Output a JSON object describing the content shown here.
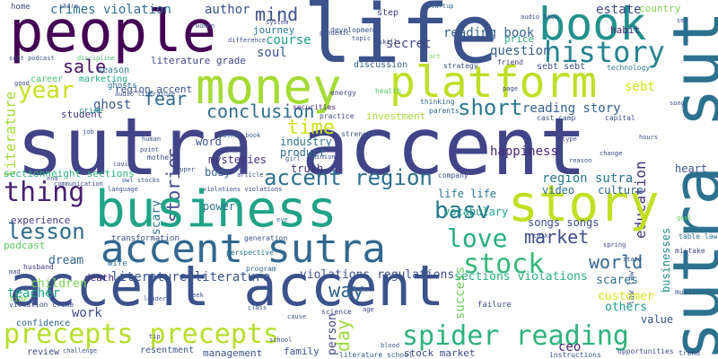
{
  "words": [
    {
      "text": "sutra accent",
      "color": "#414487",
      "rot": 0
    },
    {
      "text": "life",
      "color": "#3b528b",
      "rot": 0
    },
    {
      "text": "people",
      "color": "#440154",
      "rot": 0
    },
    {
      "text": "business",
      "color": "#20a386",
      "rot": 0
    },
    {
      "text": "accent accent",
      "color": "#3b528b",
      "rot": 0
    },
    {
      "text": "money",
      "color": "#a5db36",
      "rot": 0
    },
    {
      "text": "platform",
      "color": "#bddf26",
      "rot": 0
    },
    {
      "text": "book",
      "color": "#21918c",
      "rot": 0
    },
    {
      "text": "story",
      "color": "#c2df23",
      "rot": 0
    },
    {
      "text": "accent sutra",
      "color": "#31688e",
      "rot": 0
    },
    {
      "text": "sutra sutra",
      "color": "#2c728e",
      "rot": 90
    },
    {
      "text": "precepts precepts",
      "color": "#b5de2b",
      "rot": 0
    },
    {
      "text": "spider reading",
      "color": "#2eb37c",
      "rot": 0
    },
    {
      "text": "history",
      "color": "#25838e",
      "rot": 0
    },
    {
      "text": "stock",
      "color": "#35b779",
      "rot": 0
    },
    {
      "text": "accent region",
      "color": "#2d708e",
      "rot": 0
    },
    {
      "text": "thing",
      "color": "#482173",
      "rot": 0
    },
    {
      "text": "year",
      "color": "#c8e020",
      "rot": 0
    },
    {
      "text": "love",
      "color": "#26ad81",
      "rot": 0
    },
    {
      "text": "basv",
      "color": "#2a788e",
      "rot": 0
    },
    {
      "text": "lesson",
      "color": "#2f6c8e",
      "rot": 0
    },
    {
      "text": "conclusion",
      "color": "#2e6e8e",
      "rot": 0
    },
    {
      "text": "short",
      "color": "#2a778e",
      "rot": 0
    },
    {
      "text": "stories",
      "color": "#3e4a89",
      "rot": 90
    },
    {
      "text": "education",
      "color": "#46337e",
      "rot": 90
    },
    {
      "text": "market",
      "color": "#3e4c8a",
      "rot": 0
    },
    {
      "text": "world",
      "color": "#31688e",
      "rot": 0
    },
    {
      "text": "way",
      "color": "#31688e",
      "rot": 0
    },
    {
      "text": "time",
      "color": "#d0e11c",
      "rot": 0
    },
    {
      "text": "sale",
      "color": "#471365",
      "rot": 0
    },
    {
      "text": "fear",
      "color": "#306a8e",
      "rot": 0
    },
    {
      "text": "mind",
      "color": "#3d4e8a",
      "rot": 0
    },
    {
      "text": "day",
      "color": "#9bd93c",
      "rot": 90
    },
    {
      "text": "crimes violation",
      "color": "#2e6f8e",
      "rot": 0
    },
    {
      "text": "author",
      "color": "#3b528b",
      "rot": 0
    },
    {
      "text": "reading book",
      "color": "#355f8d",
      "rot": 0
    },
    {
      "text": "estate",
      "color": "#3f4889",
      "rot": 0
    },
    {
      "text": "reading story",
      "color": "#34618d",
      "rot": 0
    },
    {
      "text": "happiness",
      "color": "#482878",
      "rot": 0
    },
    {
      "text": "region sutra",
      "color": "#2a788e",
      "rot": 0
    },
    {
      "text": "secret",
      "color": "#3f4788",
      "rot": 0
    },
    {
      "text": "course",
      "color": "#1fa187",
      "rot": 0
    },
    {
      "text": "soul",
      "color": "#38588c",
      "rot": 0
    },
    {
      "text": "question",
      "color": "#355f8d",
      "rot": 0
    },
    {
      "text": "sebt",
      "color": "#d2e21b",
      "rot": 0
    },
    {
      "text": "literature",
      "color": "#a2da37",
      "rot": 90
    },
    {
      "text": "ghost",
      "color": "#38598c",
      "rot": 0
    },
    {
      "text": "success",
      "color": "#6ece58",
      "rot": 90
    },
    {
      "text": "person",
      "color": "#3e4989",
      "rot": 90
    },
    {
      "text": "ceo",
      "color": "#482475",
      "rot": 0
    },
    {
      "text": "scary",
      "color": "#2c738e",
      "rot": 90
    },
    {
      "text": "businesses",
      "color": "#218f8d",
      "rot": 90
    },
    {
      "text": "literature literature",
      "color": "#3a548c",
      "rot": 0
    },
    {
      "text": "teacher",
      "color": "#22a785",
      "rot": 0
    },
    {
      "text": "work",
      "color": "#3e4a89",
      "rot": 0
    },
    {
      "text": "children",
      "color": "#7cd250",
      "rot": 0
    },
    {
      "text": "dream",
      "color": "#33638d",
      "rot": 0
    },
    {
      "text": "violations regulations",
      "color": "#3c4f8a",
      "rot": 0
    },
    {
      "text": "sections violations",
      "color": "#29af7f",
      "rot": 0
    },
    {
      "text": "customer",
      "color": "#d8e219",
      "rot": 0
    },
    {
      "text": "scares",
      "color": "#2d708e",
      "rot": 0
    },
    {
      "text": "others",
      "color": "#1e9b8a",
      "rot": 0
    },
    {
      "text": "value",
      "color": "#3b518b",
      "rot": 0
    },
    {
      "text": "life life",
      "color": "#2a788e",
      "rot": 0
    },
    {
      "text": "video",
      "color": "#2c718e",
      "rot": 0
    },
    {
      "text": "culture",
      "color": "#33638d",
      "rot": 0
    },
    {
      "text": "heart",
      "color": "#3a548c",
      "rot": 0
    },
    {
      "text": "vocabulary",
      "color": "#1f9e89",
      "rot": 0
    },
    {
      "text": "songs songs",
      "color": "#3f4889",
      "rot": 0
    },
    {
      "text": "industry",
      "color": "#2b758e",
      "rot": 0
    },
    {
      "text": "truth",
      "color": "#46307e",
      "rot": 0
    },
    {
      "text": "body",
      "color": "#34608d",
      "rot": 0
    },
    {
      "text": "power",
      "color": "#2c728e",
      "rot": 0
    },
    {
      "text": "product",
      "color": "#30698e",
      "rot": 0
    },
    {
      "text": "mysteries",
      "color": "#472f7d",
      "rot": 0
    },
    {
      "text": "word",
      "color": "#3b518b",
      "rot": 0
    },
    {
      "text": "experience",
      "color": "#443983",
      "rot": 0
    },
    {
      "text": "student",
      "color": "#46337e",
      "rot": 0
    },
    {
      "text": "region accent",
      "color": "#3b528b",
      "rot": 0
    },
    {
      "text": "sectionneight sections",
      "color": "#2cb17e",
      "rot": 0
    },
    {
      "text": "podcast",
      "color": "#5ec962",
      "rot": 0
    },
    {
      "text": "death",
      "color": "#472c7a",
      "rot": 0
    },
    {
      "text": "family",
      "color": "#3e4a89",
      "rot": 0
    },
    {
      "text": "management",
      "color": "#3b528b",
      "rot": 0
    },
    {
      "text": "resentment",
      "color": "#3a548c",
      "rot": 0
    },
    {
      "text": "stock market",
      "color": "#3f4788",
      "rot": 0
    },
    {
      "text": "confidence",
      "color": "#306a8e",
      "rot": 0
    },
    {
      "text": "review",
      "color": "#404688",
      "rot": 0
    },
    {
      "text": "investment",
      "color": "#a8db34",
      "rot": 0
    },
    {
      "text": "discussion",
      "color": "#34618d",
      "rot": 0
    },
    {
      "text": "journey",
      "color": "#2b748e",
      "rot": 0
    },
    {
      "text": "literature grade",
      "color": "#3f4889",
      "rot": 0
    },
    {
      "text": "season",
      "color": "#2a788e",
      "rot": 0
    },
    {
      "text": "career",
      "color": "#4ac16d",
      "rot": 0
    },
    {
      "text": "marketing",
      "color": "#25ab82",
      "rot": 0
    },
    {
      "text": "price",
      "color": "#25ac82",
      "rot": 0
    },
    {
      "text": "habit",
      "color": "#482475",
      "rot": 0
    },
    {
      "text": "country",
      "color": "#7fd34e",
      "rot": 0
    },
    {
      "text": "sebt sebt",
      "color": "#3b528b",
      "rot": 0
    },
    {
      "text": "step",
      "color": "#424086",
      "rot": 0
    },
    {
      "text": "home",
      "color": "#3e4989",
      "rot": 0
    },
    {
      "text": "crime",
      "color": "#21908d",
      "rot": 0
    },
    {
      "text": "wife",
      "color": "#2e6e8e",
      "rot": 0
    },
    {
      "text": "ghosts",
      "color": "#2c728e",
      "rot": 0
    },
    {
      "text": "failure",
      "color": "#3f4889",
      "rot": 0
    },
    {
      "text": "time",
      "color": "#7ad151",
      "rot": 0
    },
    {
      "text": "violation crime",
      "color": "#3f4788",
      "rot": 0
    },
    {
      "text": "transformation",
      "color": "#3e4c8a",
      "rot": 0
    },
    {
      "text": "perspective",
      "color": "#2a788e",
      "rot": 0
    },
    {
      "text": "strength",
      "color": "#3a548c",
      "rot": 0
    },
    {
      "text": "company",
      "color": "#3c4f8a",
      "rot": 0
    },
    {
      "text": "opportunities",
      "color": "#3f4788",
      "rot": 0
    },
    {
      "text": "instructions",
      "color": "#3b528b",
      "rot": 0
    },
    {
      "text": "literature school",
      "color": "#38598c",
      "rot": 0
    },
    {
      "text": "trend",
      "color": "#3e4a89",
      "rot": 0
    },
    {
      "text": "science",
      "color": "#3f4788",
      "rot": 0
    },
    {
      "text": "development",
      "color": "#3a548c",
      "rot": 0
    },
    {
      "text": "generation",
      "color": "#3b528b",
      "rot": 0
    },
    {
      "text": "program",
      "color": "#31688e",
      "rot": 0
    },
    {
      "text": "strategy",
      "color": "#3b528b",
      "rot": 0
    },
    {
      "text": "friend",
      "color": "#424086",
      "rot": 0
    },
    {
      "text": "securities",
      "color": "#472d7b",
      "rot": 0
    },
    {
      "text": "practice",
      "color": "#3e4c8a",
      "rot": 0
    },
    {
      "text": "energy",
      "color": "#3f4889",
      "rot": 0
    },
    {
      "text": "thinking",
      "color": "#31688e",
      "rot": 0
    },
    {
      "text": "health",
      "color": "#5ec962",
      "rot": 0
    },
    {
      "text": "parents",
      "color": "#33638d",
      "rot": 0
    },
    {
      "text": "cast camp",
      "color": "#3b528b",
      "rot": 0
    },
    {
      "text": "capital",
      "color": "#3e4a89",
      "rot": 0
    },
    {
      "text": "technology",
      "color": "#2a788e",
      "rot": 0
    },
    {
      "text": "suffering",
      "color": "#38598c",
      "rot": 90
    },
    {
      "text": "table laws",
      "color": "#2c728e",
      "rot": 0
    },
    {
      "text": "mistake",
      "color": "#3e4989",
      "rot": 0
    },
    {
      "text": "music",
      "color": "#3b528b",
      "rot": 0
    },
    {
      "text": "law law",
      "color": "#3a548c",
      "rot": 0
    },
    {
      "text": "mother",
      "color": "#3f4788",
      "rot": 0
    },
    {
      "text": "husband",
      "color": "#46337e",
      "rot": 0
    },
    {
      "text": "audio book",
      "color": "#3e4c8a",
      "rot": 0
    },
    {
      "text": "audio literature",
      "color": "#3b528b",
      "rot": 0
    },
    {
      "text": "author book",
      "color": "#38598c",
      "rot": 0
    },
    {
      "text": "sebt podcast",
      "color": "#3b528b",
      "rot": 0
    },
    {
      "text": "discipline",
      "color": "#4ac16d",
      "rot": 0
    },
    {
      "text": "system",
      "color": "#3f4788",
      "rot": 0
    },
    {
      "text": "difference",
      "color": "#3e4c8a",
      "rot": 0
    },
    {
      "text": "pandemic",
      "color": "#3b528b",
      "rot": 0
    },
    {
      "text": "topic",
      "color": "#3a548c",
      "rot": 0
    },
    {
      "text": "skill",
      "color": "#3e4989",
      "rot": 0
    },
    {
      "text": "startup",
      "color": "#31688e",
      "rot": 0
    },
    {
      "text": "women",
      "color": "#3b528b",
      "rot": 0
    },
    {
      "text": "art",
      "color": "#7ad151",
      "rot": 0
    },
    {
      "text": "page",
      "color": "#3f4788",
      "rot": 0
    },
    {
      "text": "song",
      "color": "#3e4c8a",
      "rot": 0
    },
    {
      "text": "sex",
      "color": "#3b528b",
      "rot": 0
    },
    {
      "text": "human",
      "color": "#3a548c",
      "rot": 0
    },
    {
      "text": "point",
      "color": "#3e4a89",
      "rot": 0
    },
    {
      "text": "super",
      "color": "#3b528b",
      "rot": 0
    },
    {
      "text": "girl",
      "color": "#38598c",
      "rot": 0
    },
    {
      "text": "opinion",
      "color": "#3a548c",
      "rot": 0
    },
    {
      "text": "article",
      "color": "#3e4c8a",
      "rot": 0
    },
    {
      "text": "reason",
      "color": "#3b528b",
      "rot": 0
    },
    {
      "text": "change",
      "color": "#3e4989",
      "rot": 0
    },
    {
      "text": "covid",
      "color": "#3f4788",
      "rot": 0
    },
    {
      "text": "end",
      "color": "#3b528b",
      "rot": 0
    },
    {
      "text": "communication",
      "color": "#3e4c8a",
      "rot": 0
    },
    {
      "text": "language",
      "color": "#3a548c",
      "rot": 0
    },
    {
      "text": "owl stocks",
      "color": "#3b528b",
      "rot": 0
    },
    {
      "text": "violations violations",
      "color": "#3e4c8a",
      "rot": 0
    },
    {
      "text": "eye",
      "color": "#2a788e",
      "rot": 0
    },
    {
      "text": "talk",
      "color": "#3b528b",
      "rot": 0
    },
    {
      "text": "spring",
      "color": "#3e4989",
      "rot": 0
    },
    {
      "text": "goal",
      "color": "#5ec962",
      "rot": 0
    },
    {
      "text": "leader",
      "color": "#3b528b",
      "rot": 0
    },
    {
      "text": "week",
      "color": "#3e4c8a",
      "rot": 0
    },
    {
      "text": "class",
      "color": "#3a548c",
      "rot": 0
    },
    {
      "text": "cause",
      "color": "#3b528b",
      "rot": 0
    },
    {
      "text": "age",
      "color": "#3e4989",
      "rot": 0
    },
    {
      "text": "blood",
      "color": "#3b528b",
      "rot": 0
    },
    {
      "text": "tip",
      "color": "#3f4788",
      "rot": 0
    },
    {
      "text": "challenge",
      "color": "#3b528b",
      "rot": 0
    },
    {
      "text": "school",
      "color": "#3e4c8a",
      "rot": 0
    },
    {
      "text": "share",
      "color": "#3b528b",
      "rot": 0
    },
    {
      "text": "job",
      "color": "#3a548c",
      "rot": 0
    },
    {
      "text": "good",
      "color": "#3e4989",
      "rot": 0
    },
    {
      "text": "hours",
      "color": "#3b528b",
      "rot": 0
    },
    {
      "text": "type",
      "color": "#3e4c8a",
      "rot": 0
    },
    {
      "text": "state",
      "color": "#3b528b",
      "rot": 0
    },
    {
      "text": "mad",
      "color": "#3f4788",
      "rot": 0
    }
  ]
}
